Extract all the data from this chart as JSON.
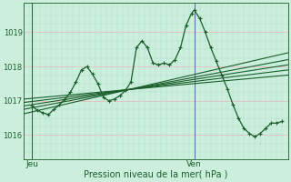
{
  "bg_color": "#cceedd",
  "plot_bg_color": "#cceedd",
  "grid_color_major": "#ffffff",
  "grid_color_minor": "#aaddcc",
  "line_color": "#1a5e2a",
  "vline_color": "#5577aa",
  "hline_color": "#cc9999",
  "title": "Pression niveau de la mer( hPa )",
  "xlabel_jeu": "Jeu",
  "xlabel_ven": "Ven",
  "ylabel_vals": [
    1016,
    1017,
    1018,
    1019
  ],
  "ylim": [
    1015.3,
    1019.85
  ],
  "xlim": [
    0,
    48
  ],
  "jeu_x": 1.5,
  "ven_x": 31,
  "main_series": [
    [
      1.5,
      1016.85
    ],
    [
      2.5,
      1016.72
    ],
    [
      3.5,
      1016.65
    ],
    [
      4.5,
      1016.6
    ],
    [
      5.5,
      1016.75
    ],
    [
      6.5,
      1016.88
    ],
    [
      7.5,
      1017.05
    ],
    [
      8.5,
      1017.25
    ],
    [
      9.5,
      1017.55
    ],
    [
      10.5,
      1017.9
    ],
    [
      11.5,
      1018.0
    ],
    [
      12.5,
      1017.78
    ],
    [
      13.5,
      1017.5
    ],
    [
      14.5,
      1017.1
    ],
    [
      15.5,
      1017.0
    ],
    [
      16.5,
      1017.05
    ],
    [
      17.5,
      1017.15
    ],
    [
      18.5,
      1017.3
    ],
    [
      19.5,
      1017.55
    ],
    [
      20.5,
      1018.55
    ],
    [
      21.5,
      1018.75
    ],
    [
      22.5,
      1018.55
    ],
    [
      23.5,
      1018.1
    ],
    [
      24.5,
      1018.05
    ],
    [
      25.5,
      1018.1
    ],
    [
      26.5,
      1018.05
    ],
    [
      27.5,
      1018.2
    ],
    [
      28.5,
      1018.55
    ],
    [
      29.5,
      1019.2
    ],
    [
      30.5,
      1019.55
    ],
    [
      31.0,
      1019.65
    ],
    [
      32.0,
      1019.4
    ],
    [
      33.0,
      1019.0
    ],
    [
      34.0,
      1018.55
    ],
    [
      35.0,
      1018.15
    ],
    [
      36.0,
      1017.75
    ],
    [
      37.0,
      1017.35
    ],
    [
      38.0,
      1016.9
    ],
    [
      39.0,
      1016.5
    ],
    [
      40.0,
      1016.2
    ],
    [
      41.0,
      1016.05
    ],
    [
      42.0,
      1015.95
    ],
    [
      43.0,
      1016.05
    ],
    [
      44.0,
      1016.2
    ],
    [
      45.0,
      1016.35
    ],
    [
      46.0,
      1016.35
    ],
    [
      47.0,
      1016.4
    ]
  ],
  "trend_lines": [
    [
      [
        0,
        1017.05
      ],
      [
        48,
        1017.75
      ]
    ],
    [
      [
        0,
        1016.95
      ],
      [
        48,
        1017.9
      ]
    ],
    [
      [
        0,
        1016.85
      ],
      [
        48,
        1018.05
      ]
    ],
    [
      [
        0,
        1016.75
      ],
      [
        48,
        1018.2
      ]
    ],
    [
      [
        0,
        1016.62
      ],
      [
        48,
        1018.4
      ]
    ]
  ]
}
